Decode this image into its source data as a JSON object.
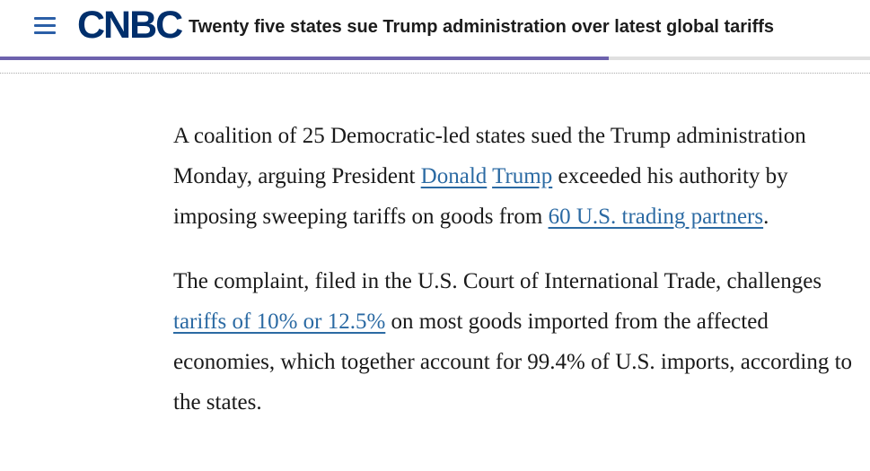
{
  "header": {
    "logo": "CNBC",
    "headline": "Twenty five states sue Trump administration over latest global tariffs",
    "read_progress": 0.7
  },
  "article": {
    "p1": {
      "t1": "A coalition of 25 Democratic-led states sued the Trump administration Monday, arguing President ",
      "link1": "Donald",
      "link2": "Trump",
      "t2": " exceeded his authority by imposing sweeping tariffs on goods from ",
      "link3": "60 U.S. trading partners",
      "t3": "."
    },
    "p2": {
      "t1": "The complaint, filed in the U.S. Court of International Trade, challenges ",
      "link1": "tariffs of 10% or 12.5%",
      "t2": " on most goods imported from the affected economies, which together account for 99.4% of U.S. imports, according to the states."
    }
  },
  "colors": {
    "brand": "#002f6c",
    "link": "#2b6aa3",
    "progress": "#6d62ad"
  }
}
